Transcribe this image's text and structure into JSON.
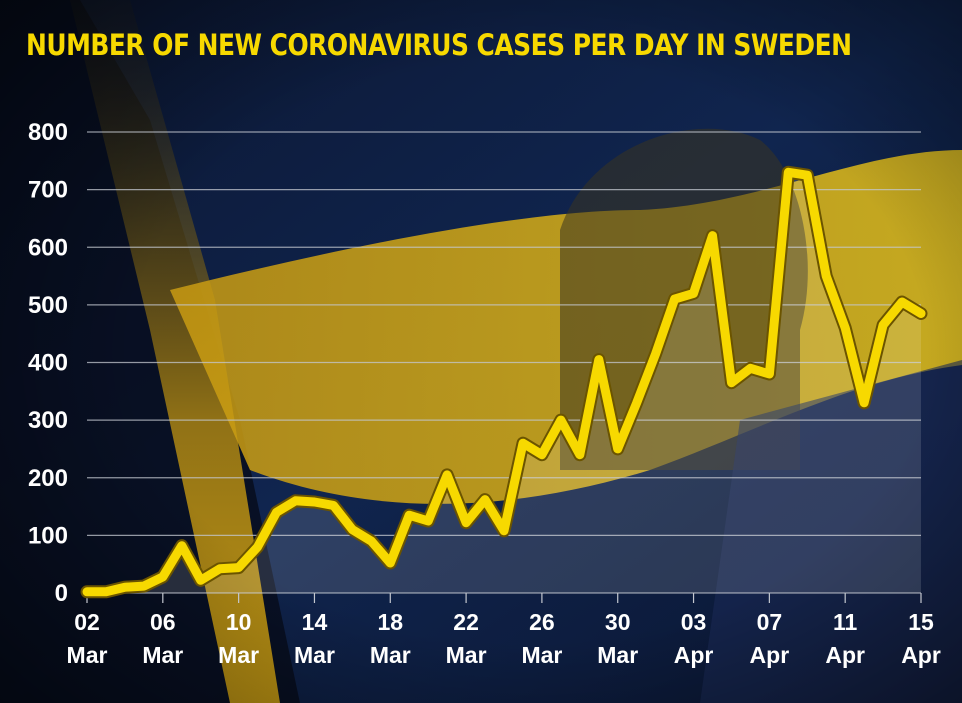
{
  "title": "NUMBER OF NEW CORONAVIRUS CASES PER DAY IN SWEDEN",
  "colors": {
    "line": "#f7d900",
    "title": "#f7d900",
    "text": "#ffffff",
    "grid": "#c4c8d0"
  },
  "chart_data": {
    "type": "line",
    "title": "NUMBER OF NEW CORONAVIRUS CASES PER DAY IN SWEDEN",
    "xlabel": "",
    "ylabel": "",
    "ylim": [
      0,
      800
    ],
    "yticks": [
      0,
      100,
      200,
      300,
      400,
      500,
      600,
      700,
      800
    ],
    "grid": true,
    "legend": "none",
    "x_tick_labels": [
      {
        "day": "02",
        "month": "Mar"
      },
      {
        "day": "06",
        "month": "Mar"
      },
      {
        "day": "10",
        "month": "Mar"
      },
      {
        "day": "14",
        "month": "Mar"
      },
      {
        "day": "18",
        "month": "Mar"
      },
      {
        "day": "22",
        "month": "Mar"
      },
      {
        "day": "26",
        "month": "Mar"
      },
      {
        "day": "30",
        "month": "Mar"
      },
      {
        "day": "03",
        "month": "Apr"
      },
      {
        "day": "07",
        "month": "Apr"
      },
      {
        "day": "11",
        "month": "Apr"
      },
      {
        "day": "15",
        "month": "Apr"
      }
    ],
    "x": [
      "2020-03-02",
      "2020-03-03",
      "2020-03-04",
      "2020-03-05",
      "2020-03-06",
      "2020-03-07",
      "2020-03-08",
      "2020-03-09",
      "2020-03-10",
      "2020-03-11",
      "2020-03-12",
      "2020-03-13",
      "2020-03-14",
      "2020-03-15",
      "2020-03-16",
      "2020-03-17",
      "2020-03-18",
      "2020-03-19",
      "2020-03-20",
      "2020-03-21",
      "2020-03-22",
      "2020-03-23",
      "2020-03-24",
      "2020-03-25",
      "2020-03-26",
      "2020-03-27",
      "2020-03-28",
      "2020-03-29",
      "2020-03-30",
      "2020-03-31",
      "2020-04-01",
      "2020-04-02",
      "2020-04-03",
      "2020-04-04",
      "2020-04-05",
      "2020-04-06",
      "2020-04-07",
      "2020-04-08",
      "2020-04-09",
      "2020-04-10",
      "2020-04-11",
      "2020-04-12",
      "2020-04-13",
      "2020-04-14",
      "2020-04-15"
    ],
    "series": [
      {
        "values": [
          2,
          2,
          10,
          12,
          28,
          82,
          22,
          42,
          44,
          80,
          140,
          160,
          158,
          152,
          110,
          90,
          52,
          135,
          125,
          205,
          122,
          162,
          108,
          260,
          240,
          300,
          240,
          405,
          250,
          330,
          415,
          510,
          520,
          620,
          365,
          390,
          380,
          730,
          725,
          550,
          460,
          330,
          465,
          505,
          485
        ]
      }
    ]
  }
}
